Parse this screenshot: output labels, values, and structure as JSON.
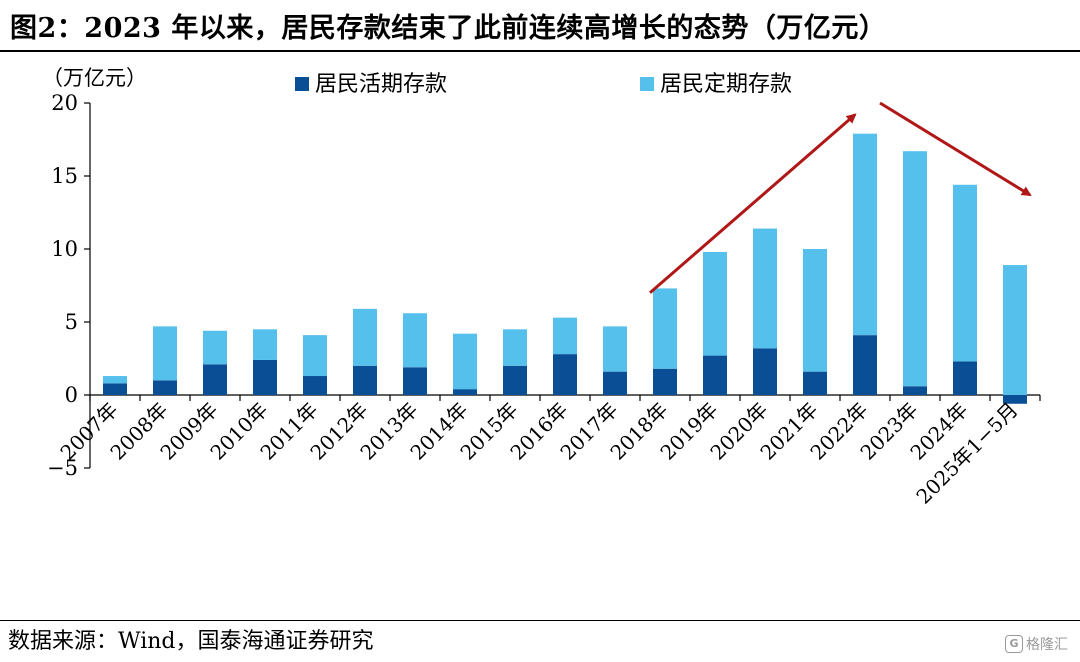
{
  "title": "图2：2023 年以来，居民存款结束了此前连续高增长的态势（万亿元）",
  "source": "数据来源：Wind，国泰海通证券研究",
  "watermark": "格隆汇",
  "colors": {
    "demand": "#0a4f96",
    "time": "#56c0ec",
    "arrow": "#b01818",
    "axis": "#000000"
  },
  "chart_data": {
    "type": "bar",
    "stacked": true,
    "unit_label": "（万亿元）",
    "ylim": [
      -5,
      20
    ],
    "yticks": [
      -5,
      0,
      5,
      10,
      15,
      20
    ],
    "ytick_labels": [
      "−5",
      "0",
      "5",
      "10",
      "15",
      "20"
    ],
    "legend_position": "top",
    "categories": [
      "2007年",
      "2008年",
      "2009年",
      "2010年",
      "2011年",
      "2012年",
      "2013年",
      "2014年",
      "2015年",
      "2016年",
      "2017年",
      "2018年",
      "2019年",
      "2020年",
      "2021年",
      "2022年",
      "2023年",
      "2024年",
      "2025年1−5月"
    ],
    "series": [
      {
        "name": "居民活期存款",
        "values": [
          0.8,
          1.0,
          2.1,
          2.4,
          1.3,
          2.0,
          1.9,
          0.4,
          2.0,
          2.8,
          1.6,
          1.8,
          2.7,
          3.2,
          1.6,
          4.1,
          0.6,
          2.3,
          -0.6
        ]
      },
      {
        "name": "居民定期存款",
        "values": [
          0.5,
          3.7,
          2.3,
          2.1,
          2.8,
          3.9,
          3.7,
          3.8,
          2.5,
          2.5,
          3.1,
          5.5,
          7.1,
          8.2,
          8.4,
          13.8,
          16.1,
          12.1,
          8.9
        ]
      }
    ],
    "annotations": [
      {
        "type": "arrow",
        "description": "upward trend",
        "from": [
          "2018年",
          7.0
        ],
        "to": [
          "2022年",
          19.2
        ]
      },
      {
        "type": "arrow",
        "description": "downward trend",
        "from": [
          "2022年",
          20.0
        ],
        "to": [
          "2025年1−5月",
          13.7
        ]
      }
    ]
  }
}
